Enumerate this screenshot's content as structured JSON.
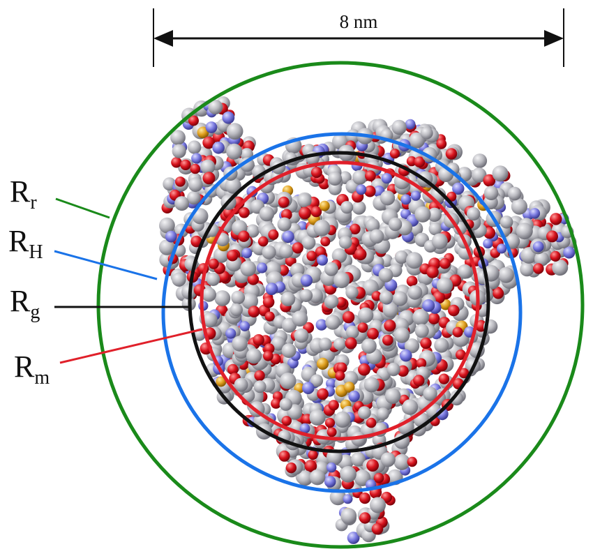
{
  "scale_bar": {
    "label": "8 nm"
  },
  "radii": [
    {
      "id": "r",
      "main": "R",
      "sub": "r",
      "color": "#1a8a1a"
    },
    {
      "id": "h",
      "main": "R",
      "sub": "H",
      "color": "#1a73e8"
    },
    {
      "id": "g",
      "main": "R",
      "sub": "g",
      "color": "#111111"
    },
    {
      "id": "m",
      "main": "R",
      "sub": "m",
      "color": "#e0202a"
    }
  ],
  "atom_colors": {
    "carbon": "#b9b9bf",
    "oxygen": "#d8141e",
    "nitrogen": "#7a7ae0",
    "sulfur": "#e0a020"
  }
}
